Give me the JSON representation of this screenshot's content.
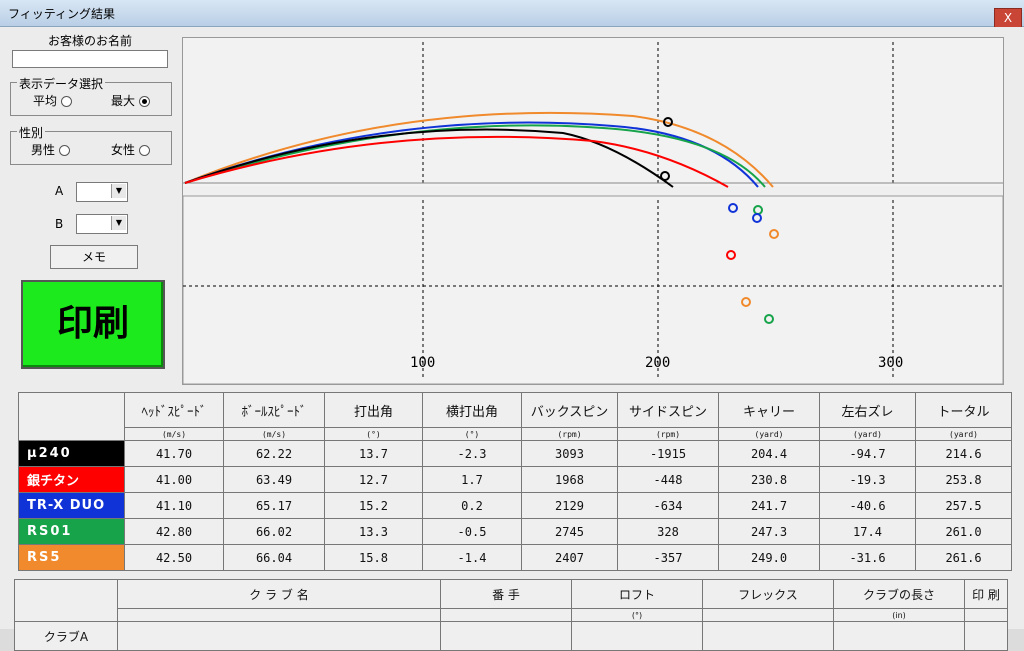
{
  "window": {
    "title": "フィッティング結果",
    "close_label": "X"
  },
  "customer": {
    "label": "お客様のお名前",
    "value": ""
  },
  "display_select": {
    "legend": "表示データ選択",
    "avg_label": "平均",
    "max_label": "最大",
    "selected": "max"
  },
  "gender": {
    "legend": "性別",
    "male_label": "男性",
    "female_label": "女性",
    "selected": "none"
  },
  "compare": {
    "a_label": "A",
    "b_label": "B",
    "a_value": "",
    "b_value": ""
  },
  "memo_label": "メモ",
  "print_label": "印刷",
  "x_axis_ticks": [
    "100",
    "200",
    "300"
  ],
  "results": {
    "headers": [
      "ﾍｯﾄﾞｽﾋﾟｰﾄﾞ",
      "ﾎﾞｰﾙｽﾋﾟｰﾄﾞ",
      "打出角",
      "横打出角",
      "バックスピン",
      "サイドスピン",
      "キャリー",
      "左右ズレ",
      "トータル"
    ],
    "units": [
      "(m/s)",
      "(m/s)",
      "(°)",
      "(°)",
      "(rpm)",
      "(rpm)",
      "(yard)",
      "(yard)",
      "(yard)"
    ],
    "rows": [
      {
        "name": "μ240",
        "color": "#000000",
        "values": [
          "41.70",
          "62.22",
          "13.7",
          "-2.3",
          "3093",
          "-1915",
          "204.4",
          "-94.7",
          "214.6"
        ]
      },
      {
        "name": "銀チタン",
        "color": "#ff0000",
        "values": [
          "41.00",
          "63.49",
          "12.7",
          "1.7",
          "1968",
          "-448",
          "230.8",
          "-19.3",
          "253.8"
        ]
      },
      {
        "name": "TR-X DUO",
        "color": "#1033d8",
        "values": [
          "41.10",
          "65.17",
          "15.2",
          "0.2",
          "2129",
          "-634",
          "241.7",
          "-40.6",
          "257.5"
        ]
      },
      {
        "name": "RS01",
        "color": "#16a34a",
        "values": [
          "42.80",
          "66.02",
          "13.3",
          "-0.5",
          "2745",
          "328",
          "247.3",
          "17.4",
          "261.0"
        ]
      },
      {
        "name": "RS5",
        "color": "#f08a2c",
        "values": [
          "42.50",
          "66.04",
          "15.8",
          "-1.4",
          "2407",
          "-357",
          "249.0",
          "-31.6",
          "261.6"
        ]
      }
    ]
  },
  "club_table": {
    "headers": [
      "ク ラ ブ 名",
      "番 手",
      "ロフト",
      "フレックス",
      "クラブの長さ",
      "印 刷"
    ],
    "units": [
      "",
      "",
      "(°)",
      "",
      "(in)",
      ""
    ],
    "row_label": "クラブA"
  }
}
